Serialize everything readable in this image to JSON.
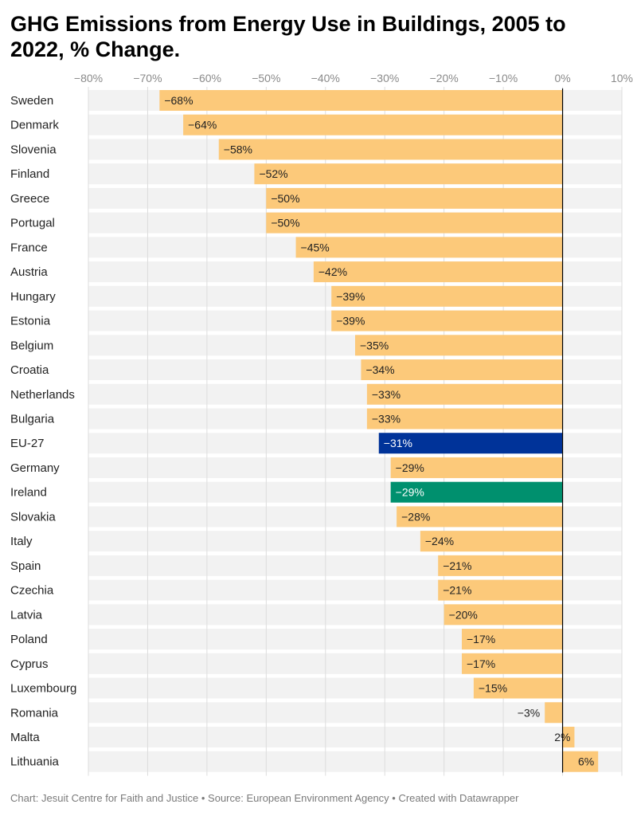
{
  "title": "GHG Emissions from Energy Use in Buildings, 2005 to 2022, % Change.",
  "footer": "Chart: Jesuit Centre for Faith and Justice • Source: European Environment Agency • Created with Datawrapper",
  "colors": {
    "default": "#fcc97a",
    "eu": "#003399",
    "ireland": "#00906e",
    "background_band": "#f2f2f2",
    "grid": "#dddddd",
    "zero_line": "#000000"
  },
  "chart_data": {
    "type": "bar",
    "orientation": "horizontal",
    "title": "GHG Emissions from Energy Use in Buildings, 2005 to 2022, % Change.",
    "xlim": [
      -80,
      10
    ],
    "xticks": [
      -80,
      -70,
      -60,
      -50,
      -40,
      -30,
      -20,
      -10,
      0,
      10
    ],
    "xtick_labels": [
      "−80%",
      "−70%",
      "−60%",
      "−50%",
      "−40%",
      "−30%",
      "−20%",
      "−10%",
      "0%",
      "10%"
    ],
    "grid": true,
    "categories": [
      "Sweden",
      "Denmark",
      "Slovenia",
      "Finland",
      "Greece",
      "Portugal",
      "France",
      "Austria",
      "Hungary",
      "Estonia",
      "Belgium",
      "Croatia",
      "Netherlands",
      "Bulgaria",
      "EU-27",
      "Germany",
      "Ireland",
      "Slovakia",
      "Italy",
      "Spain",
      "Czechia",
      "Latvia",
      "Poland",
      "Cyprus",
      "Luxembourg",
      "Romania",
      "Malta",
      "Lithuania"
    ],
    "values": [
      -68,
      -64,
      -58,
      -52,
      -50,
      -50,
      -45,
      -42,
      -39,
      -39,
      -35,
      -34,
      -33,
      -33,
      -31,
      -29,
      -29,
      -28,
      -24,
      -21,
      -21,
      -20,
      -17,
      -17,
      -15,
      -3,
      2,
      6
    ],
    "value_labels": [
      "−68%",
      "−64%",
      "−58%",
      "−52%",
      "−50%",
      "−50%",
      "−45%",
      "−42%",
      "−39%",
      "−39%",
      "−35%",
      "−34%",
      "−33%",
      "−33%",
      "−31%",
      "−29%",
      "−29%",
      "−28%",
      "−24%",
      "−21%",
      "−21%",
      "−20%",
      "−17%",
      "−17%",
      "−15%",
      "−3%",
      "2%",
      "6%"
    ],
    "highlight": {
      "EU-27": "#003399",
      "Ireland": "#00906e"
    }
  }
}
